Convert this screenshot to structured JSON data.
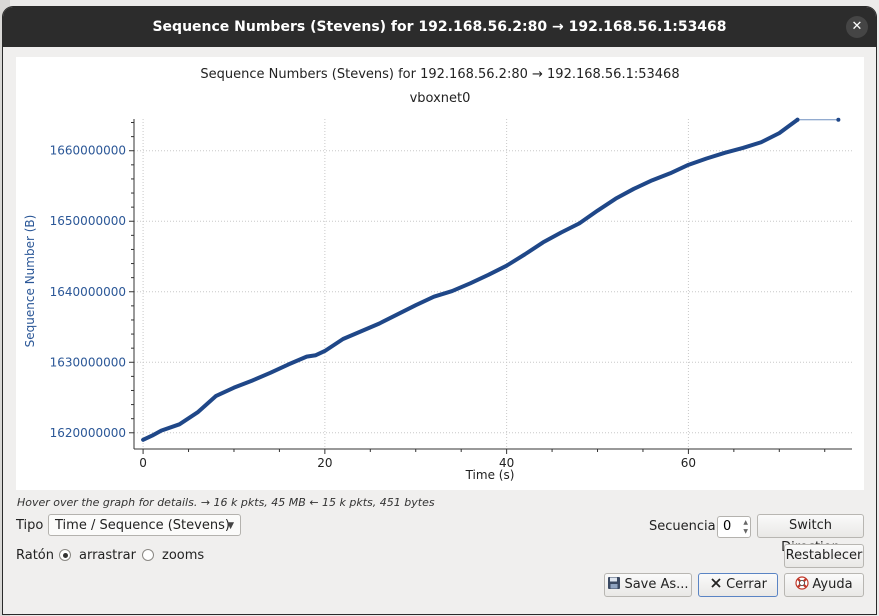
{
  "window": {
    "title": "Sequence Numbers (Stevens) for 192.168.56.2:80 → 192.168.56.1:53468"
  },
  "chart_data": {
    "type": "line",
    "title": "Sequence Numbers (Stevens) for 192.168.56.2:80 → 192.168.56.1:53468",
    "subtitle": "vboxnet0",
    "xlabel": "Time (s)",
    "ylabel": "Sequence Number (B)",
    "xlim": [
      -1,
      78
    ],
    "ylim": [
      1617700000,
      1664500000
    ],
    "x_ticks": [
      0,
      20,
      40,
      60
    ],
    "y_ticks": [
      1620000000,
      1630000000,
      1640000000,
      1650000000,
      1660000000
    ],
    "grid": true,
    "series_color": "#1f4788",
    "series": [
      {
        "x": [
          0,
          1,
          2,
          4,
          6,
          8,
          10,
          12,
          14,
          16,
          18,
          19,
          20,
          22,
          24,
          26,
          28,
          30,
          32,
          34,
          36,
          38,
          40,
          42,
          44,
          46,
          48,
          50,
          52,
          54,
          56,
          58,
          60,
          62,
          64,
          66,
          68,
          70,
          72,
          76.5
        ],
        "y": [
          1619000000,
          1619600000,
          1620300000,
          1621200000,
          1622900000,
          1625200000,
          1626400000,
          1627400000,
          1628500000,
          1629700000,
          1630800000,
          1631000000,
          1631600000,
          1633300000,
          1634400000,
          1635500000,
          1636800000,
          1638100000,
          1639300000,
          1640100000,
          1641200000,
          1642400000,
          1643700000,
          1645300000,
          1647000000,
          1648400000,
          1649700000,
          1651500000,
          1653200000,
          1654600000,
          1655800000,
          1656800000,
          1658000000,
          1658900000,
          1659700000,
          1660400000,
          1661200000,
          1662500000,
          1664400000,
          1664400000
        ]
      }
    ]
  },
  "status": {
    "hint": "Hover over the graph for details. → 16 k pkts, 45 MB ← 15 k pkts, 451 bytes"
  },
  "controls": {
    "tipo_label": "Tipo",
    "tipo_value": "Time / Sequence (Stevens)",
    "secuencia_label": "Secuencia",
    "secuencia_value": "0",
    "switch_direction": "Switch Direction",
    "raton_label": "Ratón",
    "arrastrar": "arrastrar",
    "zooms": "zooms",
    "restablecer": "Restablecer",
    "save_as": "Save As...",
    "cerrar": "Cerrar",
    "ayuda": "Ayuda"
  }
}
